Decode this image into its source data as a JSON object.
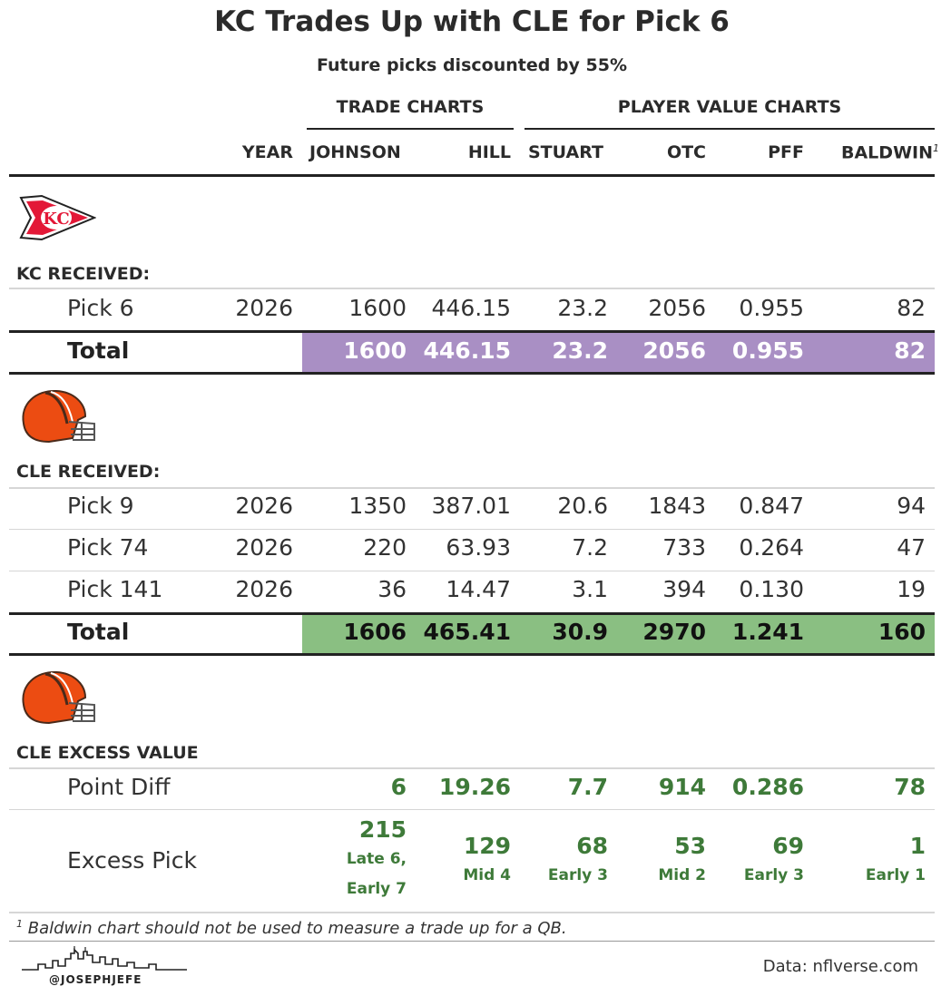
{
  "title": "KC Trades Up with CLE for Pick 6",
  "subtitle": "Future picks discounted by 55%",
  "groups": {
    "trade_charts": "TRADE CHARTS",
    "player_value_charts": "PLAYER VALUE CHARTS"
  },
  "columns": {
    "year": "YEAR",
    "johnson": "JOHNSON",
    "hill": "HILL",
    "stuart": "STUART",
    "otc": "OTC",
    "pff": "PFF",
    "baldwin": "BALDWIN",
    "baldwin_note": "1"
  },
  "kc": {
    "header": "KC RECEIVED:",
    "logo_text": "KC",
    "rows": [
      {
        "label": "Pick 6",
        "year": "2026",
        "johnson": "1600",
        "hill": "446.15",
        "stuart": "23.2",
        "otc": "2056",
        "pff": "0.955",
        "baldwin": "82"
      }
    ],
    "total": {
      "label": "Total",
      "johnson": "1600",
      "hill": "446.15",
      "stuart": "23.2",
      "otc": "2056",
      "pff": "0.955",
      "baldwin": "82"
    }
  },
  "cle": {
    "header": "CLE RECEIVED:",
    "rows": [
      {
        "label": "Pick 9",
        "year": "2026",
        "johnson": "1350",
        "hill": "387.01",
        "stuart": "20.6",
        "otc": "1843",
        "pff": "0.847",
        "baldwin": "94"
      },
      {
        "label": "Pick 74",
        "year": "2026",
        "johnson": "220",
        "hill": "63.93",
        "stuart": "7.2",
        "otc": "733",
        "pff": "0.264",
        "baldwin": "47"
      },
      {
        "label": "Pick 141",
        "year": "2026",
        "johnson": "36",
        "hill": "14.47",
        "stuart": "3.1",
        "otc": "394",
        "pff": "0.130",
        "baldwin": "19"
      }
    ],
    "total": {
      "label": "Total",
      "johnson": "1606",
      "hill": "465.41",
      "stuart": "30.9",
      "otc": "2970",
      "pff": "1.241",
      "baldwin": "160"
    }
  },
  "excess": {
    "header": "CLE EXCESS VALUE",
    "point_diff": {
      "label": "Point Diff",
      "johnson": "6",
      "hill": "19.26",
      "stuart": "7.7",
      "otc": "914",
      "pff": "0.286",
      "baldwin": "78"
    },
    "excess_pick": {
      "label": "Excess Pick",
      "johnson": {
        "pick": "215",
        "round_line1": "Late 6,",
        "round_line2": "Early 7"
      },
      "hill": {
        "pick": "129",
        "round": "Mid 4"
      },
      "stuart": {
        "pick": "68",
        "round": "Early 3"
      },
      "otc": {
        "pick": "53",
        "round": "Mid 2"
      },
      "pff": {
        "pick": "69",
        "round": "Early 3"
      },
      "baldwin": {
        "pick": "1",
        "round": "Early 1"
      }
    }
  },
  "footnote": {
    "marker": "1",
    "text": "Baldwin chart should not be used to measure a trade up for a QB."
  },
  "credit": "@JOSEPHJEFE",
  "source": "Data: nflverse.com",
  "colors": {
    "kc_total": "#a98fc4",
    "cle_total": "#8abf82",
    "excess_text": "#3e7a39",
    "kc_red": "#e31837",
    "browns_orange": "#ec4c12",
    "browns_brown": "#4a2a1a"
  },
  "icons": {
    "kc_logo": "kc-arrowhead-logo",
    "cle_logo": "browns-helmet-logo",
    "skyline": "kc-skyline-logo"
  }
}
